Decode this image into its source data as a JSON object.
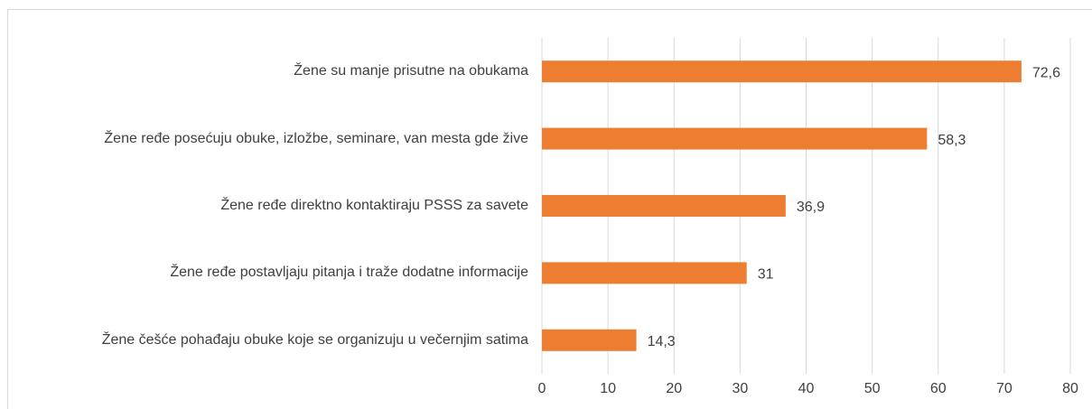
{
  "chart_data": {
    "type": "bar",
    "orientation": "horizontal",
    "categories": [
      "Žene su manje prisutne na obukama",
      "Žene ređe posećuju obuke, izložbe, seminare, van mesta gde žive",
      "Žene ređe direktno kontaktiraju PSSS za savete",
      "Žene ređe postavljaju pitanja i traže dodatne informacije",
      "Žene češće pohađaju obuke koje se organizuju u večernjim satima"
    ],
    "values": [
      72.6,
      58.3,
      36.9,
      31,
      14.3
    ],
    "value_labels": [
      "72,6",
      "58,3",
      "36,9",
      "31",
      "14,3"
    ],
    "color": "#ed7d31",
    "xlim": [
      0,
      80
    ],
    "xticks": [
      0,
      10,
      20,
      30,
      40,
      50,
      60,
      70,
      80
    ],
    "grid": true
  }
}
